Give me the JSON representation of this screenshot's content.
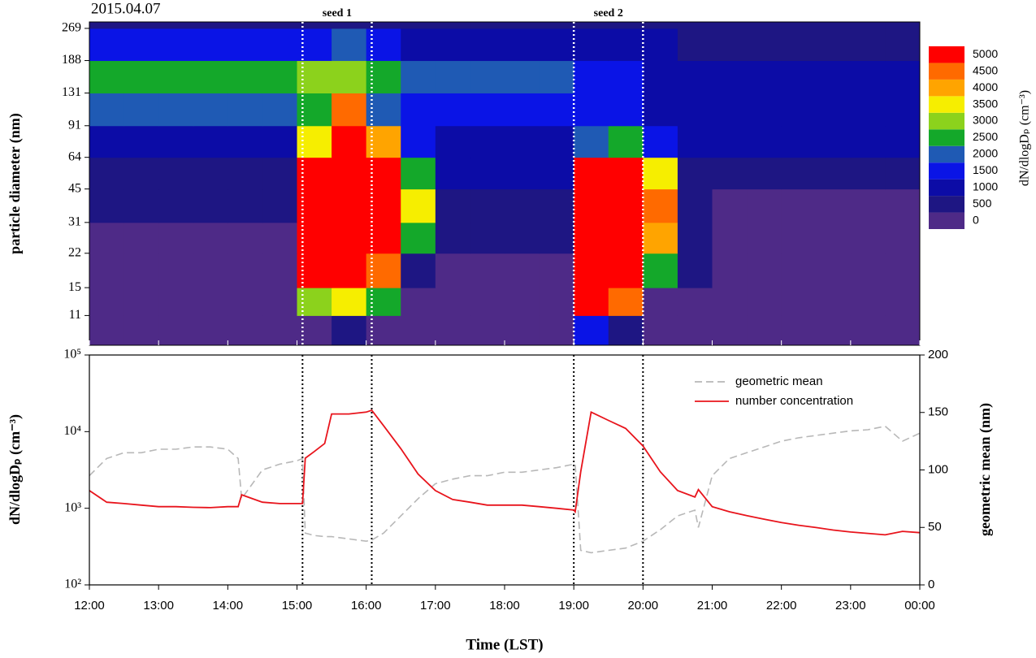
{
  "chart_data": [
    {
      "type": "heatmap",
      "title": "2015.04.07",
      "ylabel": "particle diameter (nm)",
      "yscale": "log",
      "xlim": [
        12,
        24
      ],
      "xticks": [
        12,
        13,
        14,
        15,
        16,
        17,
        18,
        19,
        20,
        21,
        22,
        23,
        24
      ],
      "ylim": [
        7.9,
        289
      ],
      "yticks": [
        11,
        15,
        22,
        31,
        45,
        64,
        91,
        131,
        188,
        269
      ],
      "x_edges": [
        12,
        12.5,
        13,
        13.5,
        14,
        14.5,
        15,
        15.5,
        16,
        16.5,
        17,
        17.5,
        18,
        18.5,
        19,
        19.5,
        20,
        20.5,
        21,
        21.5,
        22,
        22.5,
        23,
        23.5,
        24
      ],
      "y_edges": [
        7.9,
        11,
        15,
        22,
        31,
        45,
        64,
        91,
        131,
        188,
        269,
        289
      ],
      "z": [
        [
          150,
          150,
          150,
          150,
          150,
          150,
          400,
          700,
          300,
          150,
          150,
          150,
          150,
          150,
          1500,
          900,
          150,
          150,
          150,
          150,
          150,
          150,
          150,
          150
        ],
        [
          200,
          200,
          200,
          200,
          200,
          200,
          3000,
          3500,
          2500,
          200,
          200,
          200,
          200,
          200,
          5000,
          4500,
          300,
          200,
          200,
          200,
          200,
          200,
          200,
          200
        ],
        [
          250,
          250,
          250,
          250,
          250,
          250,
          5000,
          5000,
          4500,
          800,
          300,
          300,
          300,
          300,
          5000,
          5000,
          2500,
          500,
          250,
          250,
          250,
          250,
          250,
          250
        ],
        [
          300,
          300,
          300,
          300,
          300,
          300,
          5000,
          5000,
          5000,
          2500,
          500,
          500,
          500,
          500,
          5000,
          5000,
          4000,
          600,
          350,
          350,
          350,
          350,
          350,
          350
        ],
        [
          500,
          500,
          500,
          500,
          500,
          500,
          5000,
          5000,
          5000,
          3500,
          700,
          700,
          700,
          700,
          5000,
          5000,
          4500,
          800,
          450,
          450,
          450,
          450,
          450,
          450
        ],
        [
          800,
          800,
          800,
          800,
          800,
          800,
          5000,
          5000,
          5000,
          2500,
          1000,
          1000,
          1000,
          1000,
          5000,
          5000,
          3500,
          900,
          650,
          650,
          650,
          650,
          650,
          650
        ],
        [
          1200,
          1200,
          1200,
          1200,
          1200,
          1200,
          3500,
          5000,
          4000,
          1600,
          1400,
          1400,
          1400,
          1400,
          2000,
          2500,
          1600,
          1000,
          1000,
          1000,
          1000,
          1000,
          1000,
          1000
        ],
        [
          2200,
          2200,
          2200,
          2200,
          2200,
          2200,
          2500,
          4500,
          2200,
          1800,
          1800,
          1800,
          1800,
          1800,
          1600,
          1700,
          1400,
          1200,
          1200,
          1200,
          1200,
          1200,
          1200,
          1200
        ],
        [
          2800,
          2800,
          2800,
          2800,
          2800,
          2800,
          3000,
          3000,
          2500,
          2000,
          2000,
          2000,
          2000,
          2000,
          1800,
          1700,
          1400,
          1400,
          1400,
          1400,
          1400,
          1400,
          1400,
          1400
        ],
        [
          1500,
          1500,
          1500,
          1500,
          1500,
          1500,
          1800,
          2000,
          1500,
          1200,
          1200,
          1200,
          1200,
          1200,
          1000,
          1000,
          1000,
          900,
          900,
          900,
          900,
          900,
          900,
          900
        ],
        [
          700,
          700,
          700,
          700,
          700,
          700,
          700,
          700,
          700,
          700,
          700,
          700,
          700,
          700,
          600,
          600,
          600,
          600,
          600,
          600,
          600,
          600,
          600,
          600
        ]
      ],
      "colorbar": {
        "label": "dN/dlogDₚ (cm⁻³)",
        "levels": [
          0,
          500,
          1000,
          1500,
          2000,
          2500,
          3000,
          3500,
          4000,
          4500,
          5000
        ],
        "colors": [
          "#4e2a87",
          "#1e1683",
          "#0c0ca6",
          "#0a14e6",
          "#1f5ab4",
          "#14a82a",
          "#8cd21c",
          "#f6ee00",
          "#ffa400",
          "#ff6a00",
          "#ff0000"
        ]
      },
      "markers": [
        {
          "label": "seed 1",
          "start": 15.08,
          "end": 16.08
        },
        {
          "label": "seed 2",
          "start": 19.0,
          "end": 20.0
        }
      ]
    },
    {
      "type": "line",
      "xlabel": "Time (LST)",
      "ylabel": "dN/dlogDₚ (cm⁻³)",
      "y2label": "geometric mean (nm)",
      "yscale": "log",
      "xlim": [
        12,
        24
      ],
      "xticks": [
        {
          "value": 12,
          "label": "12:00"
        },
        {
          "value": 13,
          "label": "13:00"
        },
        {
          "value": 14,
          "label": "14:00"
        },
        {
          "value": 15,
          "label": "15:00"
        },
        {
          "value": 16,
          "label": "16:00"
        },
        {
          "value": 17,
          "label": "17:00"
        },
        {
          "value": 18,
          "label": "18:00"
        },
        {
          "value": 19,
          "label": "19:00"
        },
        {
          "value": 20,
          "label": "20:00"
        },
        {
          "value": 21,
          "label": "21:00"
        },
        {
          "value": 22,
          "label": "22:00"
        },
        {
          "value": 23,
          "label": "23:00"
        },
        {
          "value": 24,
          "label": "00:00"
        }
      ],
      "ylim": [
        100,
        100000
      ],
      "yticks": [
        {
          "value": 100,
          "label": "10²"
        },
        {
          "value": 1000,
          "label": "10³"
        },
        {
          "value": 10000,
          "label": "10⁴"
        },
        {
          "value": 100000,
          "label": "10⁵"
        }
      ],
      "y2lim": [
        0,
        200
      ],
      "y2ticks": [
        0,
        50,
        100,
        150,
        200
      ],
      "legend": "upper right",
      "x": [
        12,
        12.25,
        12.5,
        12.75,
        13,
        13.25,
        13.5,
        13.75,
        14,
        14.15,
        14.2,
        14.5,
        14.75,
        15,
        15.08,
        15.12,
        15.25,
        15.4,
        15.5,
        15.75,
        16,
        16.08,
        16.25,
        16.5,
        16.75,
        17,
        17.25,
        17.5,
        17.75,
        18,
        18.25,
        18.5,
        18.75,
        19,
        19.02,
        19.1,
        19.25,
        19.5,
        19.75,
        20,
        20.25,
        20.5,
        20.75,
        20.8,
        21,
        21.25,
        21.5,
        21.75,
        22,
        22.25,
        22.5,
        22.75,
        23,
        23.25,
        23.5,
        23.75,
        24
      ],
      "series": [
        {
          "name": "geometric mean",
          "color": "#b8b8b8",
          "dash": true,
          "axis": "y2",
          "values": [
            95,
            110,
            115,
            115,
            118,
            118,
            120,
            120,
            118,
            110,
            75,
            100,
            105,
            108,
            110,
            45,
            43,
            42,
            42,
            40,
            38,
            39,
            45,
            60,
            75,
            88,
            92,
            95,
            95,
            98,
            98,
            100,
            102,
            105,
            105,
            30,
            28,
            30,
            32,
            38,
            48,
            60,
            65,
            50,
            95,
            110,
            115,
            120,
            125,
            128,
            130,
            132,
            134,
            135,
            138,
            125,
            132
          ]
        },
        {
          "name": "number concentration",
          "color": "#e8141c",
          "dash": false,
          "values": [
            1700,
            1200,
            1150,
            1100,
            1050,
            1050,
            1030,
            1020,
            1050,
            1050,
            1500,
            1200,
            1150,
            1150,
            1150,
            4500,
            5500,
            7000,
            17000,
            17000,
            18000,
            19000,
            12000,
            6000,
            2800,
            1700,
            1300,
            1200,
            1100,
            1100,
            1100,
            1050,
            1000,
            950,
            900,
            3000,
            18000,
            14000,
            11000,
            6500,
            3000,
            1700,
            1400,
            1750,
            1050,
            900,
            800,
            720,
            650,
            600,
            560,
            520,
            490,
            470,
            450,
            500,
            480
          ]
        }
      ]
    }
  ]
}
